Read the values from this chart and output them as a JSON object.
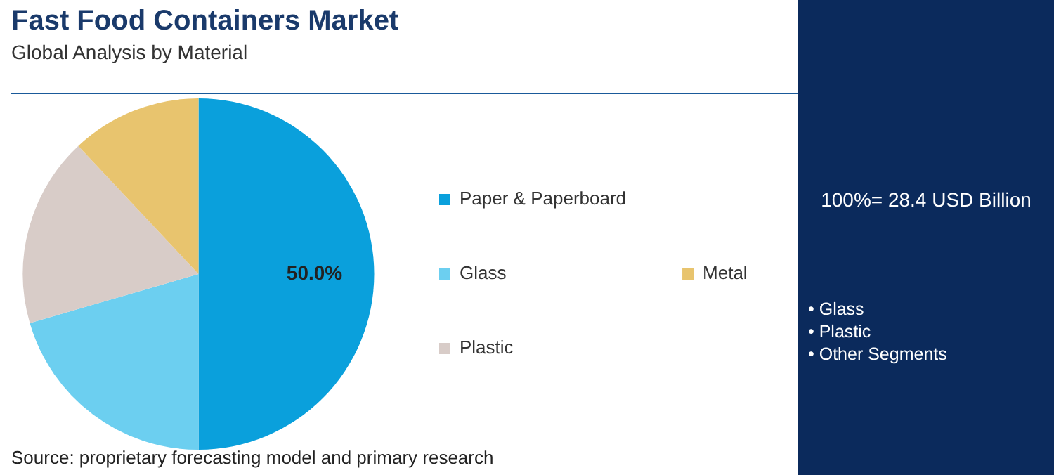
{
  "chart_data": {
    "type": "pie",
    "title": "Fast Food Containers Market",
    "subtitle": "Global Analysis by Material",
    "categories": [
      "Paper & Paperboard",
      "Glass",
      "Plastic",
      "Metal"
    ],
    "values": [
      50.0,
      20.5,
      17.5,
      12.0
    ],
    "colors": [
      "#0aa0dc",
      "#6ccff0",
      "#d8ccc8",
      "#e8c46e"
    ],
    "value_labels": [
      "50.0%",
      null,
      null,
      null
    ],
    "legend": "right",
    "annotations": [
      "100%= 28.4 USD Billion",
      "• Glass\n• Plastic\n• Other Segments",
      "Source: proprietary forecasting model and primary research"
    ]
  }
}
